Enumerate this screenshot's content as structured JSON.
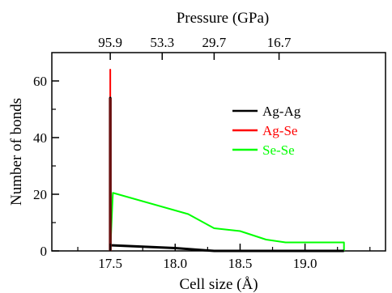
{
  "chart_data": {
    "type": "line",
    "xlabel": "Cell size (Å)",
    "ylabel": "Number of bonds",
    "top_xlabel": "Pressure (GPa)",
    "xlim": [
      17.05,
      19.62
    ],
    "ylim": [
      0,
      70
    ],
    "x_ticks": [
      17.5,
      18.0,
      18.5,
      19.0
    ],
    "x_tick_labels": [
      "17.5",
      "18.0",
      "18.5",
      "19.0"
    ],
    "y_ticks": [
      0,
      20,
      40,
      60
    ],
    "y_tick_labels": [
      "0",
      "20",
      "40",
      "60"
    ],
    "top_ticks": [
      17.5,
      17.9,
      18.3,
      18.8
    ],
    "top_tick_labels": [
      "95.9",
      "53.3",
      "29.7",
      "16.7"
    ],
    "legend_position": "center-right",
    "series": [
      {
        "name": "Ag-Ag",
        "color": "#000000",
        "x": [
          17.5,
          17.5,
          17.5,
          18.0,
          18.3,
          18.5,
          18.8,
          19.0,
          19.3,
          19.3
        ],
        "y": [
          0,
          54,
          2,
          1,
          0,
          0,
          0,
          0,
          0,
          0
        ]
      },
      {
        "name": "Ag-Se",
        "color": "#ff0000",
        "x": [
          17.5,
          17.5,
          17.5
        ],
        "y": [
          0,
          64,
          0
        ]
      },
      {
        "name": "Se-Se",
        "color": "#00ff00",
        "x": [
          17.5,
          17.52,
          18.1,
          18.3,
          18.5,
          18.7,
          18.85,
          19.0,
          19.3,
          19.3
        ],
        "y": [
          0,
          20.5,
          13,
          8,
          7,
          4,
          3,
          3,
          3,
          0
        ]
      }
    ]
  }
}
